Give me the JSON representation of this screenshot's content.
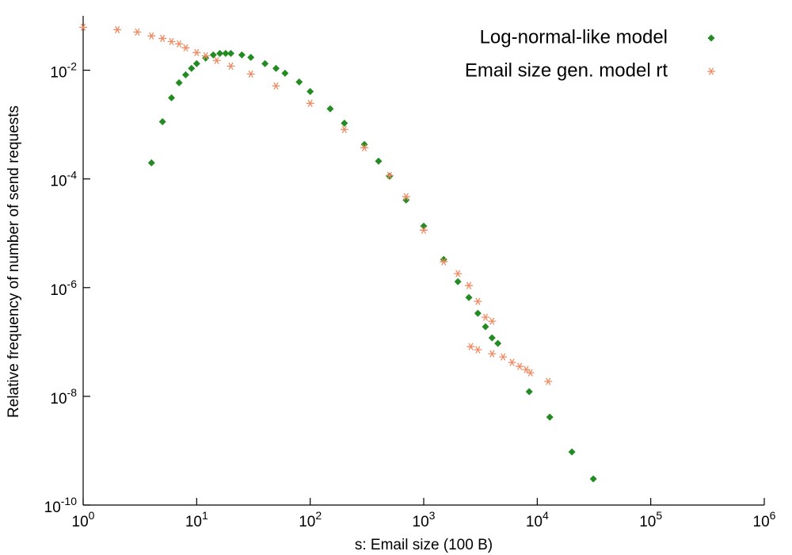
{
  "chart_data": {
    "type": "scatter",
    "xscale": "log",
    "yscale": "log",
    "x_label": "s: Email size (100 B)",
    "y_label": "Relative frequency of number of send requests",
    "xlim": [
      1,
      1000000
    ],
    "ylim": [
      1e-10,
      0.1
    ],
    "xticks": [
      {
        "value": 1,
        "label": "100"
      },
      {
        "value": 10,
        "label": "101"
      },
      {
        "value": 100,
        "label": "102"
      },
      {
        "value": 1000,
        "label": "103"
      },
      {
        "value": 10000,
        "label": "104"
      },
      {
        "value": 100000,
        "label": "105"
      },
      {
        "value": 1000000,
        "label": "106"
      }
    ],
    "yticks": [
      {
        "value": 1e-10,
        "label": "10-10"
      },
      {
        "value": 1e-08,
        "label": "10-8"
      },
      {
        "value": 1e-06,
        "label": "10-6"
      },
      {
        "value": 0.0001,
        "label": "10-4"
      },
      {
        "value": 0.01,
        "label": "10-2"
      }
    ],
    "legend_position": "top-right",
    "series": [
      {
        "name": "Log-normal-like model",
        "color": "#228b22",
        "marker": "diamond",
        "x": [
          4,
          5,
          6,
          7,
          8,
          9,
          10,
          12,
          14,
          16,
          18,
          20,
          25,
          30,
          40,
          50,
          60,
          80,
          100,
          150,
          200,
          300,
          400,
          500,
          700,
          1000,
          1500,
          2000,
          2500,
          3000,
          3500,
          4000,
          4500,
          8500,
          12900,
          20200,
          31200
        ],
        "values": [
          0.000198,
          0.00113,
          0.00311,
          0.00589,
          0.00822,
          0.0108,
          0.0132,
          0.0167,
          0.0191,
          0.0204,
          0.0204,
          0.0204,
          0.0191,
          0.0172,
          0.0132,
          0.0108,
          0.00881,
          0.00608,
          0.00406,
          0.00195,
          0.00106,
          0.00043,
          0.000212,
          0.000112,
          4.09e-05,
          1.35e-05,
          3.3e-06,
          1.29e-06,
          6.59e-07,
          3.37e-07,
          1.91e-07,
          1.19e-07,
          9.42e-08,
          1.22e-08,
          4.15e-09,
          9.48e-10,
          3.03e-10
        ]
      },
      {
        "name": "Email size gen. model rt",
        "color": "#f08a62",
        "marker": "star",
        "x": [
          1,
          2,
          3,
          4,
          5,
          6,
          7,
          8,
          10,
          12,
          15,
          20,
          30,
          50,
          100,
          200,
          300,
          500,
          700,
          1000,
          1500,
          2000,
          2500,
          2600,
          3000,
          3000,
          3500,
          4000,
          4000,
          5000,
          6000,
          7000,
          8000,
          8700,
          12500
        ],
        "values": [
          0.0617,
          0.0557,
          0.0504,
          0.0427,
          0.0385,
          0.0337,
          0.0305,
          0.0258,
          0.0211,
          0.0184,
          0.0151,
          0.0119,
          0.00851,
          0.00514,
          0.00246,
          0.000813,
          0.000375,
          0.000116,
          4.69e-05,
          1.14e-05,
          3e-06,
          1.81e-06,
          1.09e-06,
          8.22e-08,
          5.58e-07,
          7.2e-08,
          2.85e-07,
          2.41e-07,
          6.08e-08,
          5.32e-08,
          4.21e-08,
          3.56e-08,
          3.11e-08,
          2.72e-08,
          1.88e-08
        ]
      }
    ]
  }
}
